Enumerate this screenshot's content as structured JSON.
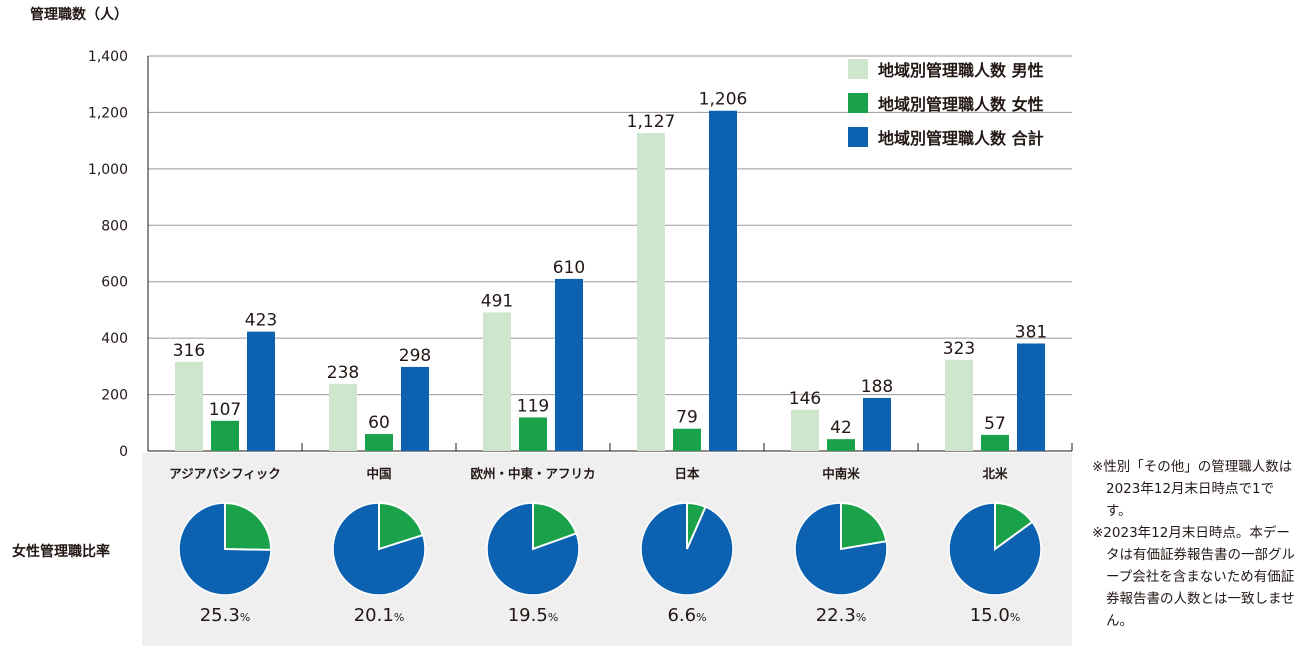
{
  "chart_data": {
    "type": "bar",
    "ylabel": "管理職数（人）",
    "ylim": [
      0,
      1400
    ],
    "yticks": [
      "0",
      "200",
      "400",
      "600",
      "800",
      "1,000",
      "1,200",
      "1,400"
    ],
    "grid": true,
    "legend_position": "top-right",
    "categories": [
      "アジアパシフィック",
      "中国",
      "欧州・中東・アフリカ",
      "日本",
      "中南米",
      "北米"
    ],
    "series": [
      {
        "name": "地域別管理職人数 男性",
        "color": "#cde6cc",
        "values": [
          316,
          238,
          491,
          1127,
          146,
          323
        ],
        "labels": [
          "316",
          "238",
          "491",
          "1,127",
          "146",
          "323"
        ]
      },
      {
        "name": "地域別管理職人数 女性",
        "color": "#1aa24a",
        "values": [
          107,
          60,
          119,
          79,
          42,
          57
        ],
        "labels": [
          "107",
          "60",
          "119",
          "79",
          "42",
          "57"
        ]
      },
      {
        "name": "地域別管理職人数 合計",
        "color": "#0c62b0",
        "values": [
          423,
          298,
          610,
          1206,
          188,
          381
        ],
        "labels": [
          "423",
          "298",
          "610",
          "1,206",
          "188",
          "381"
        ]
      }
    ],
    "female_ratio": {
      "label": "女性管理職比率",
      "values": [
        25.3,
        20.1,
        19.5,
        6.6,
        22.3,
        15.0
      ],
      "labels": [
        "25.3",
        "20.1",
        "19.5",
        "6.6",
        "22.3",
        "15.0"
      ],
      "unit": "%",
      "colors": {
        "female": "#1aa24a",
        "other": "#0c62b0"
      }
    }
  },
  "notes": [
    "※性別「その他」の管理職人数は2023年12月末日時点で1です。",
    "※2023年12月末日時点。本データは有価証券報告書の一部グループ会社を含まないため有価証券報告書の人数とは一致しません。"
  ]
}
